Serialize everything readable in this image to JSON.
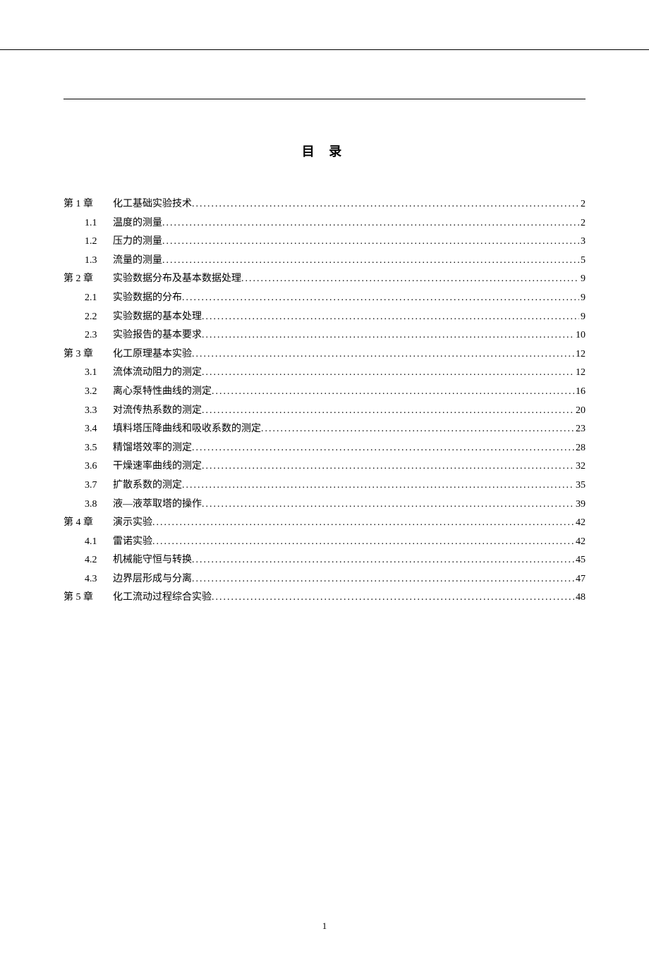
{
  "title": "目  录",
  "page_number": "1",
  "text_color": "#000000",
  "background_color": "#ffffff",
  "font_family": "SimSun",
  "title_fontsize": 18,
  "body_fontsize": 14,
  "entries": [
    {
      "number": "第 1 章",
      "text": "化工基础实验技术",
      "page": "2",
      "level": 0
    },
    {
      "number": "1.1",
      "text": "温度的测量",
      "page": "2",
      "level": 1
    },
    {
      "number": "1.2",
      "text": "压力的测量",
      "page": "3",
      "level": 1
    },
    {
      "number": "1.3",
      "text": "流量的测量",
      "page": "5",
      "level": 1
    },
    {
      "number": "第 2 章",
      "text": "实验数据分布及基本数据处理",
      "page": "9",
      "level": 0
    },
    {
      "number": "2.1",
      "text": "实验数据的分布",
      "page": "9",
      "level": 1
    },
    {
      "number": "2.2",
      "text": "实验数据的基本处理",
      "page": "9",
      "level": 1
    },
    {
      "number": "2.3",
      "text": "实验报告的基本要求",
      "page": "10",
      "level": 1
    },
    {
      "number": "第 3 章",
      "text": "化工原理基本实验",
      "page": "12",
      "level": 0
    },
    {
      "number": "3.1",
      "text": "流体流动阻力的测定",
      "page": "12",
      "level": 1
    },
    {
      "number": "3.2",
      "text": "离心泵特性曲线的测定",
      "page": "16",
      "level": 1
    },
    {
      "number": "3.3",
      "text": "对流传热系数的测定",
      "page": "20",
      "level": 1
    },
    {
      "number": "3.4",
      "text": "填料塔压降曲线和吸收系数的测定",
      "page": "23",
      "level": 1
    },
    {
      "number": "3.5",
      "text": "精馏塔效率的测定",
      "page": "28",
      "level": 1
    },
    {
      "number": "3.6",
      "text": "干燥速率曲线的测定",
      "page": "32",
      "level": 1
    },
    {
      "number": "3.7",
      "text": "扩散系数的测定",
      "page": "35",
      "level": 1
    },
    {
      "number": "3.8",
      "text": "液—液萃取塔的操作",
      "page": "39",
      "level": 1
    },
    {
      "number": "第 4 章",
      "text": "演示实验",
      "page": "42",
      "level": 0
    },
    {
      "number": "4.1",
      "text": "雷诺实验",
      "page": "42",
      "level": 1
    },
    {
      "number": "4.2",
      "text": "机械能守恒与转换",
      "page": "45",
      "level": 1
    },
    {
      "number": "4.3",
      "text": "边界层形成与分离",
      "page": "47",
      "level": 1
    },
    {
      "number": "第 5 章",
      "text": "化工流动过程综合实验",
      "page": "48",
      "level": 0
    }
  ]
}
